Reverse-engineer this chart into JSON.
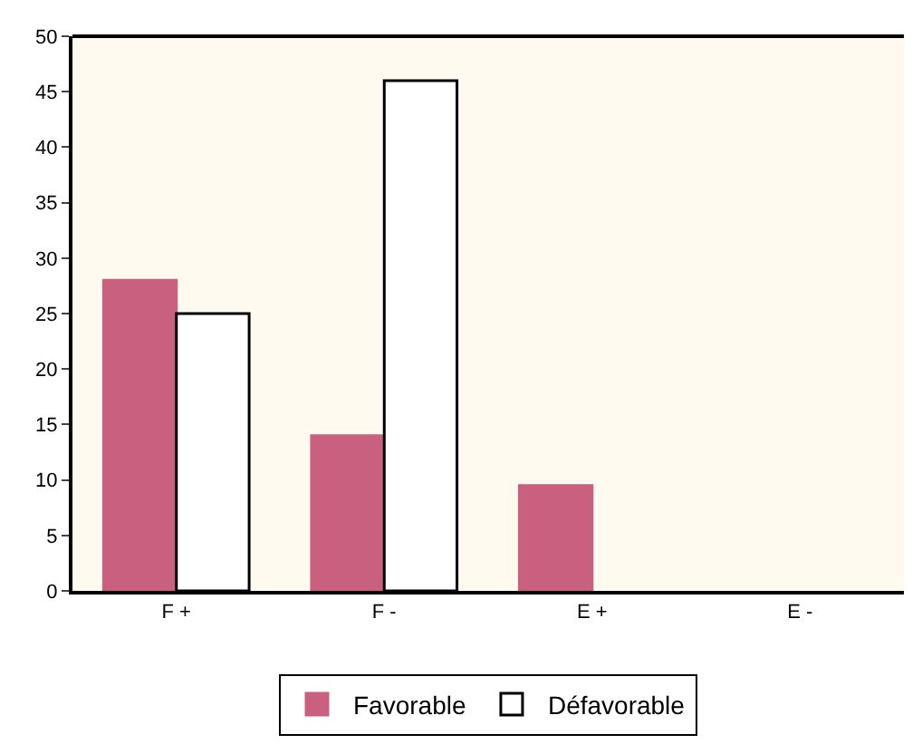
{
  "chart_data": {
    "type": "bar",
    "categories": [
      "F +",
      "F -",
      "E +",
      "E -"
    ],
    "series": [
      {
        "name": "Favorable",
        "color": "#c9607f",
        "values": [
          28,
          14,
          9.5,
          0
        ]
      },
      {
        "name": "Défavorable",
        "color": "#ffffff",
        "values": [
          25,
          46,
          0,
          0
        ]
      }
    ],
    "ylim": [
      0,
      50
    ],
    "yticks": [
      0,
      5,
      10,
      15,
      20,
      25,
      30,
      35,
      40,
      45,
      50
    ],
    "grid": false,
    "legend": "bottom"
  }
}
